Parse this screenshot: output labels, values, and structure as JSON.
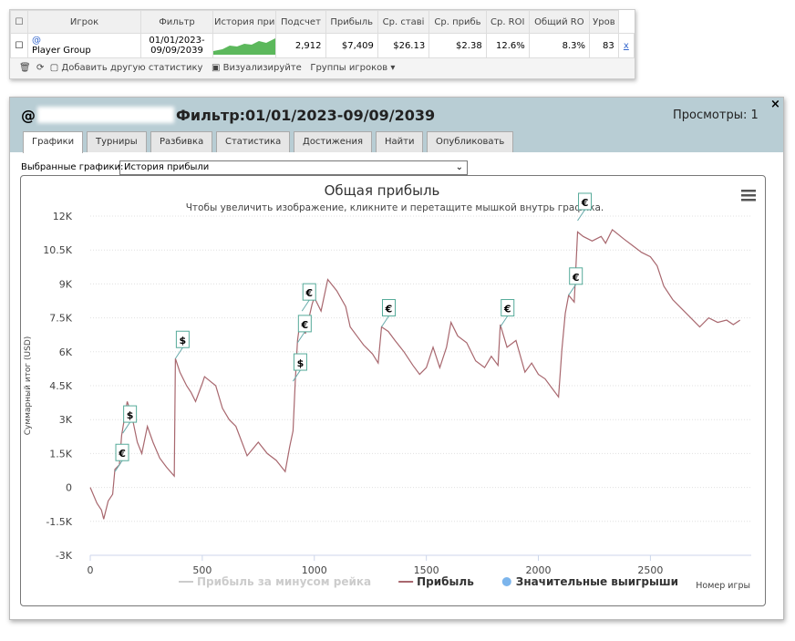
{
  "table": {
    "headers": [
      "Игрок",
      "Фильтр",
      "История при",
      "Подсчет",
      "Прибыль",
      "Ср. ставі",
      "Ср. прибь",
      "Ср. ROI",
      "Общий RO",
      "Уров"
    ],
    "row": {
      "player_prefix": "@",
      "player": "Player Group",
      "filter": "01/01/2023-09/09/2039",
      "cells": [
        "2,912",
        "$7,409",
        "$26.13",
        "$2.38",
        "12.6%",
        "8.3%",
        "83"
      ],
      "link": "x"
    }
  },
  "toolbar": {
    "add": "Добавить другую статистику",
    "visualize": "Визуализируйте",
    "groups": "Группы игроков"
  },
  "panel": {
    "prefix": "@",
    "title": "Фильтр:01/01/2023-09/09/2039",
    "views": "Просмотры: 1",
    "tabs": [
      "Графики",
      "Турниры",
      "Разбивка",
      "Статистика",
      "Достижения",
      "Найти",
      "Опубликовать"
    ],
    "select_label": "Выбранные графики:",
    "select_value": "История прибыли"
  },
  "chart_data": {
    "type": "line",
    "title": "Общая прибыль",
    "subtitle": "Чтобы увеличить изображение, кликните и перетащите мышкой внутрь графика.",
    "y_label": "Суммарный итог (USD)",
    "x_label": "Номер игры",
    "xlim": [
      0,
      2950
    ],
    "xticks": [
      0,
      500,
      1000,
      1500,
      2000,
      2500
    ],
    "ylim": [
      -3000,
      12000
    ],
    "yticks": [
      {
        "value": -3000,
        "label": "-3K"
      },
      {
        "value": -1500,
        "label": "-1.5K"
      },
      0,
      {
        "value": 1500,
        "label": "1.5K"
      },
      {
        "value": 3000,
        "label": "3K"
      },
      {
        "value": 4500,
        "label": "4.5K"
      },
      {
        "value": 6000,
        "label": "6K"
      },
      {
        "value": 7500,
        "label": "7.5K"
      },
      {
        "value": 9000,
        "label": "9K"
      },
      {
        "value": 10500,
        "label": "10.5K"
      },
      {
        "value": 12000,
        "label": "12K"
      }
    ],
    "grid": true,
    "series": [
      {
        "name": "Прибыль за минусом рейка",
        "color": "#cccccc",
        "visible": false
      },
      {
        "name": "Прибыль",
        "color": "#a8676e",
        "visible": true,
        "x": [
          0,
          30,
          50,
          60,
          80,
          100,
          110,
          130,
          140,
          165,
          185,
          210,
          230,
          255,
          280,
          310,
          340,
          375,
          380,
          400,
          430,
          450,
          470,
          500,
          510,
          560,
          590,
          620,
          650,
          700,
          750,
          790,
          830,
          870,
          890,
          905,
          915,
          925,
          940,
          960,
          990,
          1000,
          1030,
          1060,
          1100,
          1140,
          1160,
          1190,
          1220,
          1260,
          1285,
          1300,
          1330,
          1360,
          1400,
          1440,
          1470,
          1500,
          1530,
          1560,
          1590,
          1610,
          1640,
          1680,
          1720,
          1760,
          1790,
          1820,
          1830,
          1860,
          1900,
          1940,
          1970,
          2000,
          2030,
          2060,
          2090,
          2105,
          2120,
          2135,
          2160,
          2175,
          2200,
          2240,
          2280,
          2300,
          2330,
          2380,
          2420,
          2460,
          2500,
          2530,
          2560,
          2600,
          2640,
          2680,
          2720,
          2760,
          2800,
          2840,
          2870,
          2900
        ],
        "values": [
          0,
          -700,
          -1000,
          -1400,
          -600,
          -300,
          800,
          1000,
          2300,
          3800,
          3200,
          2000,
          1500,
          2700,
          2000,
          1300,
          900,
          500,
          5700,
          5100,
          4500,
          4200,
          3800,
          4600,
          4900,
          4500,
          3500,
          3000,
          2700,
          1400,
          2000,
          1500,
          1200,
          700,
          1800,
          2500,
          4700,
          6500,
          7600,
          6800,
          8100,
          8400,
          7800,
          9200,
          8700,
          8000,
          7100,
          6700,
          6300,
          5900,
          5500,
          7100,
          6900,
          6500,
          6000,
          5400,
          5000,
          5300,
          6200,
          5300,
          6200,
          7300,
          6700,
          6400,
          5600,
          5300,
          5800,
          5400,
          7200,
          6200,
          6500,
          5100,
          5500,
          5000,
          4800,
          4400,
          4000,
          6100,
          7700,
          8500,
          8200,
          11300,
          11100,
          10900,
          11100,
          10800,
          11400,
          11000,
          10700,
          10400,
          10200,
          9800,
          8900,
          8300,
          7900,
          7500,
          7100,
          7500,
          7300,
          7400,
          7200,
          7400
        ]
      }
    ],
    "flags": {
      "name": "Значительные выигрыши",
      "color": "#7cb5ec",
      "x": [
        110,
        145,
        380,
        905,
        925,
        945,
        1300,
        1830,
        2135,
        2175
      ],
      "values": [
        700,
        2400,
        5700,
        4700,
        6400,
        7800,
        7100,
        7100,
        8500,
        11800
      ],
      "labels": [
        "€",
        "$",
        "$",
        "$",
        "€",
        "€",
        "€",
        "€",
        "€",
        "€"
      ]
    }
  }
}
